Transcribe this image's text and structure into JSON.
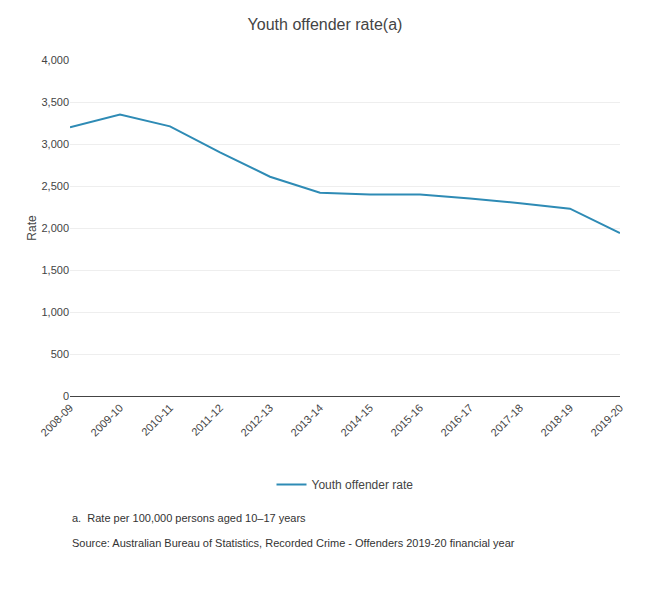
{
  "chart_data": {
    "type": "line",
    "title": "Youth offender rate(a)",
    "ylabel": "Rate",
    "categories": [
      "2008-09",
      "2009-10",
      "2010-11",
      "2011-12",
      "2012-13",
      "2013-14",
      "2014-15",
      "2015-16",
      "2016-17",
      "2017-18",
      "2018-19",
      "2019-20"
    ],
    "series": [
      {
        "name": "Youth offender rate",
        "color": "#2e8bb5",
        "values": [
          3200,
          3350,
          3210,
          2900,
          2610,
          2420,
          2400,
          2400,
          2350,
          2295,
          2230,
          1940
        ]
      }
    ],
    "ylim": [
      0,
      4000
    ],
    "yticks": [
      0,
      500,
      {
        "value": 1000,
        "label": "1,000"
      },
      {
        "value": 1500,
        "label": "1,500"
      },
      {
        "value": 2000,
        "label": "2,000"
      },
      {
        "value": 2500,
        "label": "2,500"
      },
      {
        "value": 3000,
        "label": "3,000"
      },
      {
        "value": 3500,
        "label": "3,500"
      },
      {
        "value": 4000,
        "label": "4,000"
      }
    ],
    "grid": true,
    "legend": "bottom",
    "annotations": [
      "a.  Rate per 100,000 persons aged 10–17 years",
      "Source: Australian Bureau of Statistics, Recorded Crime - Offenders 2019-20 financial year"
    ]
  }
}
